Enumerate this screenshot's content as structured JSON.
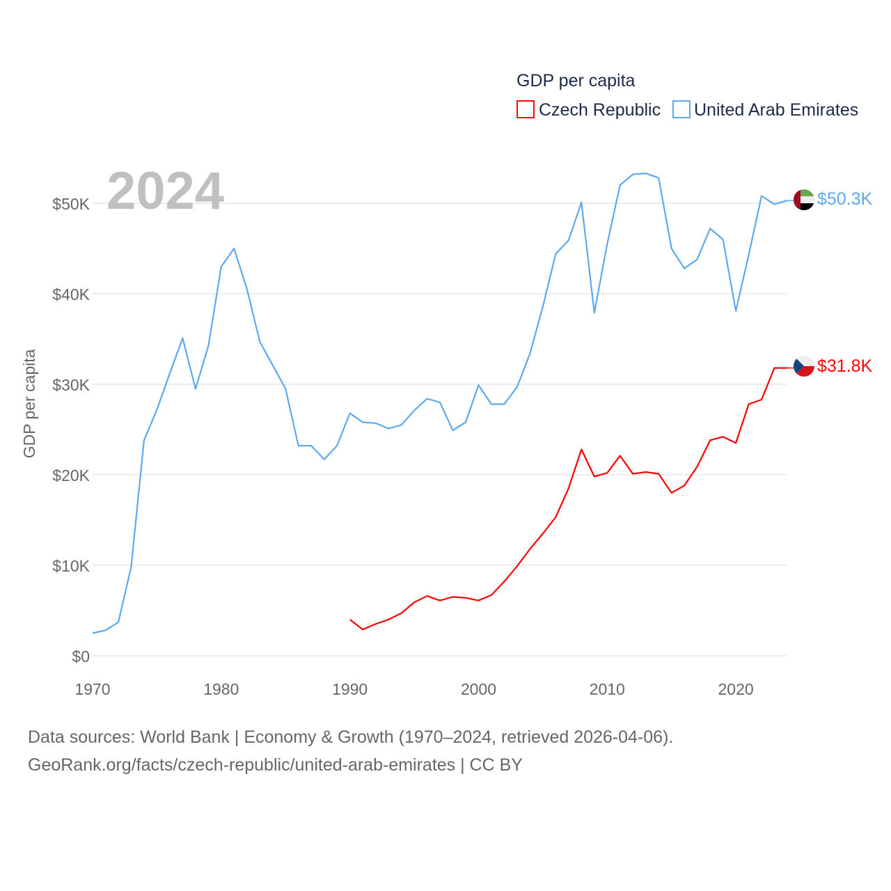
{
  "chart_data": {
    "type": "line",
    "title": "GDP per capita",
    "year_watermark": "2024",
    "ylabel": "GDP per capita",
    "xlabel": "",
    "xlim": [
      1970,
      2024
    ],
    "ylim": [
      0,
      55000
    ],
    "grid": true,
    "legend_placement": "top-right",
    "x_ticks": [
      1970,
      1980,
      1990,
      2000,
      2010,
      2020
    ],
    "x_tick_labels": [
      "1970",
      "1980",
      "1990",
      "2000",
      "2010",
      "2020"
    ],
    "y_ticks": [
      0,
      10000,
      20000,
      30000,
      40000,
      50000
    ],
    "y_tick_labels": [
      "$0",
      "$10K",
      "$20K",
      "$30K",
      "$40K",
      "$50K"
    ],
    "series": [
      {
        "name": "Czech Republic",
        "color": "#ff0000",
        "end_label": "$31.8K",
        "flag": "czech-flag",
        "x": [
          1990,
          1991,
          1992,
          1993,
          1994,
          1995,
          1996,
          1997,
          1998,
          1999,
          2000,
          2001,
          2002,
          2003,
          2004,
          2005,
          2006,
          2007,
          2008,
          2009,
          2010,
          2011,
          2012,
          2013,
          2014,
          2015,
          2016,
          2017,
          2018,
          2019,
          2020,
          2021,
          2022,
          2023,
          2024
        ],
        "values": [
          4000,
          2900,
          3500,
          4000,
          4700,
          5900,
          6600,
          6100,
          6500,
          6400,
          6100,
          6700,
          8200,
          9900,
          11800,
          13500,
          15300,
          18500,
          22800,
          19800,
          20200,
          22100,
          20100,
          20300,
          20100,
          18000,
          18800,
          20900,
          23800,
          24200,
          23500,
          27800,
          28300,
          31800,
          31800
        ]
      },
      {
        "name": "United Arab Emirates",
        "color": "#5ea8f0",
        "end_label": "$50.3K",
        "flag": "uae-flag",
        "x": [
          1970,
          1971,
          1972,
          1973,
          1974,
          1975,
          1976,
          1977,
          1978,
          1979,
          1980,
          1981,
          1982,
          1983,
          1984,
          1985,
          1986,
          1987,
          1988,
          1989,
          1990,
          1991,
          1992,
          1993,
          1994,
          1995,
          1996,
          1997,
          1998,
          1999,
          2000,
          2001,
          2002,
          2003,
          2004,
          2005,
          2006,
          2007,
          2008,
          2009,
          2010,
          2011,
          2012,
          2013,
          2014,
          2015,
          2016,
          2017,
          2018,
          2019,
          2020,
          2021,
          2022,
          2023,
          2024
        ],
        "values": [
          2500,
          2800,
          3700,
          9800,
          23800,
          27200,
          31200,
          35100,
          29500,
          34200,
          43000,
          45000,
          40500,
          34700,
          32100,
          29500,
          23200,
          23200,
          21700,
          23200,
          26800,
          25800,
          25700,
          25100,
          25500,
          27100,
          28400,
          28000,
          24900,
          25800,
          29900,
          27800,
          27800,
          29700,
          33400,
          38600,
          44400,
          45900,
          50100,
          37900,
          45500,
          52000,
          53200,
          53300,
          52800,
          45000,
          42800,
          43800,
          47200,
          46000,
          38100,
          44300,
          50800,
          49900,
          50300
        ]
      }
    ]
  },
  "footer": {
    "line1": "Data sources: World Bank | Economy & Growth (1970–2024, retrieved 2026-04-06).",
    "line2": "GeoRank.org/facts/czech-republic/united-arab-emirates | CC BY"
  }
}
